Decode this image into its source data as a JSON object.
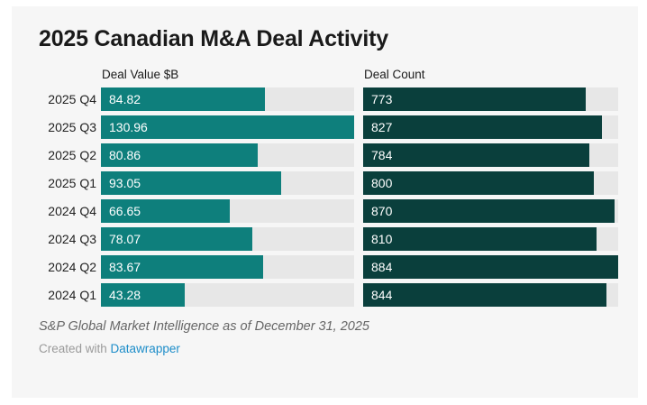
{
  "title": "2025 Canadian M&A Deal Activity",
  "chart_data": {
    "type": "bar",
    "orientation": "horizontal",
    "title": "2025 Canadian M&A Deal Activity",
    "categories": [
      "2025 Q4",
      "2025 Q3",
      "2025 Q2",
      "2025 Q1",
      "2024 Q4",
      "2024 Q3",
      "2024 Q2",
      "2024 Q1"
    ],
    "series": [
      {
        "name": "Deal Value $B",
        "values": [
          84.82,
          130.96,
          80.86,
          93.05,
          66.65,
          78.07,
          83.67,
          43.28
        ],
        "axis_max": 130.96,
        "bar_color": "#0e7f7c",
        "value_decimals": 2
      },
      {
        "name": "Deal Count",
        "values": [
          773,
          827,
          784,
          800,
          870,
          810,
          884,
          844
        ],
        "axis_max": 884,
        "bar_color": "#0a3f3c",
        "value_decimals": 0
      }
    ],
    "grid": false,
    "legend_position": "column-headers",
    "value_labels": "inside-bar-start",
    "track_color": "#e7e7e7"
  },
  "footer": {
    "source_note": "S&P Global Market Intelligence as of December 31, 2025",
    "credit_prefix": "Created with ",
    "credit_link": "Datawrapper"
  },
  "colors": {
    "panel_background": "#f6f6f6",
    "page_background": "#ffffff",
    "title_text": "#1a1a1a",
    "row_label_text": "#222222",
    "bar_label_text": "#ffffff",
    "source_text": "#666666",
    "credit_text": "#9a9a9a",
    "credit_link": "#1d8dc9"
  }
}
